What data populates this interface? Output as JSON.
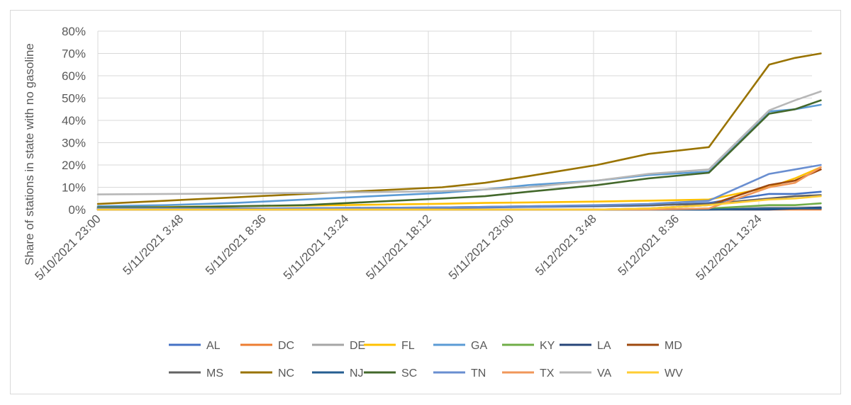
{
  "chart_data": {
    "type": "line",
    "title": "",
    "xlabel": "",
    "ylabel": "Share of stations in state with no gasoline",
    "ylim": [
      0,
      0.8
    ],
    "yticks": [
      "0%",
      "10%",
      "20%",
      "30%",
      "40%",
      "50%",
      "60%",
      "70%",
      "80%"
    ],
    "x": [
      "5/10/2021 23:00",
      "5/11/2021 3:00",
      "5/11/2021 7:00",
      "5/11/2021 11:00",
      "5/11/2021 15:00",
      "5/11/2021 19:00",
      "5/11/2021 21:30",
      "5/12/2021 0:00",
      "5/12/2021 4:00",
      "5/12/2021 7:00",
      "5/12/2021 10:30",
      "5/12/2021 14:00",
      "5/12/2021 15:30",
      "5/12/2021 17:00"
    ],
    "xtick_labels": [
      "5/10/2021 23:00",
      "5/11/2021 3:48",
      "5/11/2021 8:36",
      "5/11/2021 13:24",
      "5/11/2021 18:12",
      "5/11/2021 23:00",
      "5/12/2021 3:48",
      "5/12/2021 8:36",
      "5/12/2021 13:24"
    ],
    "legend_position": "bottom",
    "grid": true,
    "series": [
      {
        "name": "AL",
        "color": "#4472c4",
        "values": [
          0.005,
          0.005,
          0.005,
          0.005,
          0.005,
          0.008,
          0.01,
          0.012,
          0.015,
          0.018,
          0.03,
          0.07,
          0.07,
          0.08
        ]
      },
      {
        "name": "DC",
        "color": "#ed7d31",
        "values": [
          0,
          0,
          0,
          0,
          0,
          0,
          0,
          0,
          0,
          0,
          0,
          0,
          0,
          0
        ]
      },
      {
        "name": "DE",
        "color": "#a5a5a5",
        "values": [
          0,
          0,
          0,
          0,
          0,
          0,
          0,
          0,
          0,
          0,
          0,
          0.01,
          0.01,
          0.01
        ]
      },
      {
        "name": "FL",
        "color": "#ffc000",
        "values": [
          0.01,
          0.012,
          0.015,
          0.018,
          0.022,
          0.026,
          0.03,
          0.032,
          0.036,
          0.04,
          0.045,
          0.1,
          0.14,
          0.19
        ]
      },
      {
        "name": "GA",
        "color": "#5b9bd5",
        "values": [
          0.015,
          0.02,
          0.03,
          0.045,
          0.06,
          0.075,
          0.09,
          0.11,
          0.13,
          0.155,
          0.17,
          0.44,
          0.45,
          0.47
        ]
      },
      {
        "name": "KY",
        "color": "#70ad47",
        "values": [
          0,
          0,
          0,
          0,
          0,
          0,
          0,
          0,
          0,
          0,
          0.005,
          0.02,
          0.02,
          0.028
        ]
      },
      {
        "name": "LA",
        "color": "#264478",
        "values": [
          0,
          0,
          0,
          0,
          0,
          0,
          0,
          0,
          0,
          0,
          0,
          0,
          0.005,
          0.01
        ]
      },
      {
        "name": "MD",
        "color": "#9e480e",
        "values": [
          0,
          0,
          0,
          0,
          0,
          0,
          0,
          0,
          0,
          0.005,
          0.02,
          0.11,
          0.13,
          0.18
        ]
      },
      {
        "name": "MS",
        "color": "#636363",
        "values": [
          0.005,
          0.005,
          0.005,
          0.006,
          0.008,
          0.01,
          0.012,
          0.015,
          0.018,
          0.02,
          0.025,
          0.05,
          0.06,
          0.065
        ]
      },
      {
        "name": "NC",
        "color": "#997300",
        "values": [
          0.025,
          0.04,
          0.055,
          0.07,
          0.085,
          0.1,
          0.12,
          0.15,
          0.2,
          0.25,
          0.28,
          0.65,
          0.68,
          0.7
        ]
      },
      {
        "name": "NJ",
        "color": "#255e91",
        "values": [
          0,
          0,
          0,
          0,
          0,
          0,
          0,
          0,
          0,
          0,
          0,
          0.005,
          0.005,
          0.005
        ]
      },
      {
        "name": "SC",
        "color": "#43682b",
        "values": [
          0.01,
          0.01,
          0.015,
          0.02,
          0.035,
          0.05,
          0.06,
          0.08,
          0.11,
          0.14,
          0.165,
          0.43,
          0.45,
          0.49
        ]
      },
      {
        "name": "TN",
        "color": "#698ed0",
        "values": [
          0.005,
          0.005,
          0.005,
          0.006,
          0.008,
          0.01,
          0.012,
          0.015,
          0.02,
          0.025,
          0.04,
          0.16,
          0.18,
          0.2
        ]
      },
      {
        "name": "TX",
        "color": "#f1975a",
        "values": [
          0,
          0,
          0,
          0,
          0,
          0,
          0,
          0,
          0,
          0,
          0.005,
          0.1,
          0.12,
          0.19
        ]
      },
      {
        "name": "VA",
        "color": "#b7b7b7",
        "values": [
          0.068,
          0.07,
          0.072,
          0.075,
          0.078,
          0.083,
          0.09,
          0.1,
          0.13,
          0.16,
          0.18,
          0.445,
          0.49,
          0.53
        ]
      },
      {
        "name": "WV",
        "color": "#ffcd33",
        "values": [
          0,
          0,
          0,
          0,
          0,
          0,
          0,
          0,
          0,
          0.005,
          0.02,
          0.045,
          0.05,
          0.06
        ]
      }
    ]
  }
}
